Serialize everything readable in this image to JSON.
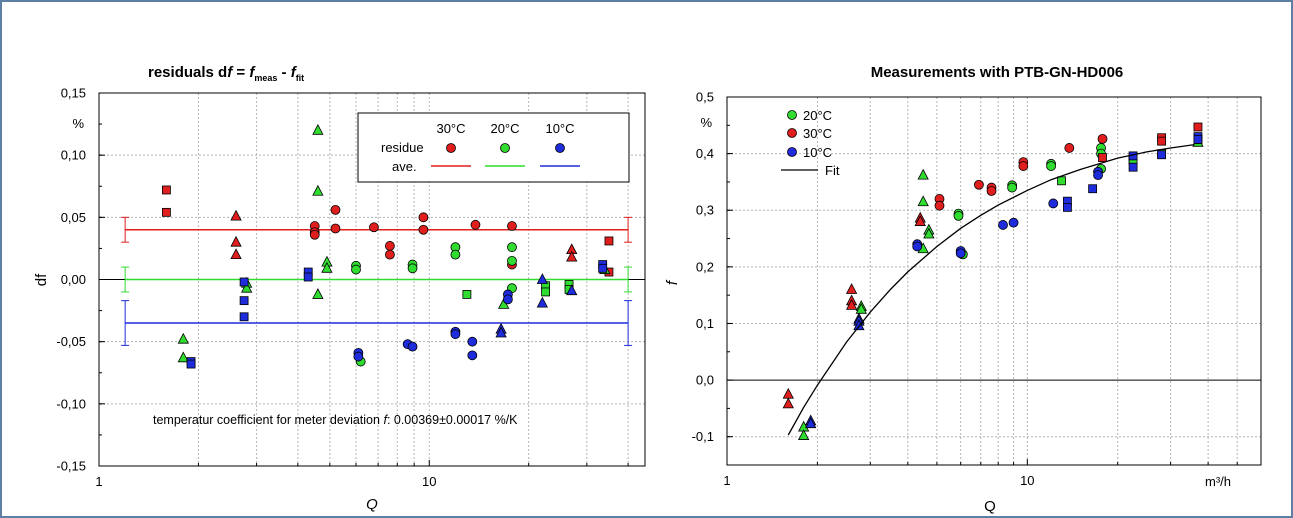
{
  "colors": {
    "30C": "#e01e1e",
    "20C": "#2fdc2f",
    "10C": "#1e2cdc",
    "frame": "#5f7ea3"
  },
  "chart_data": [
    {
      "type": "scatter",
      "title_parts": [
        "residuals d",
        "f",
        " = ",
        "f",
        "meas",
        " - ",
        "f",
        "fit"
      ],
      "xlabel": "Q",
      "ylabel": "df",
      "yunit": "%",
      "xscale": "log",
      "xlim": [
        1,
        45
      ],
      "ylim": [
        -0.15,
        0.15
      ],
      "yticks": [
        "0,15",
        "0,10",
        "0,05",
        "0,00",
        "-0,05",
        "-0,10",
        "-0,15"
      ],
      "ytick_values": [
        0.15,
        0.1,
        0.05,
        0.0,
        -0.05,
        -0.1,
        -0.15
      ],
      "xticks": [
        "1",
        "10"
      ],
      "xtick_values": [
        1,
        10
      ],
      "grid": true,
      "legend": {
        "headers": [
          "30°C",
          "20°C",
          "10°C"
        ],
        "row1": "residue",
        "row2": "ave.",
        "placement": "top-right"
      },
      "annotation": {
        "prefix": "temperatur coefficient for meter deviation ",
        "var": "f",
        "suffix": ": 0.00369±0.00017 %/K"
      },
      "averages": [
        {
          "name": "30°C",
          "value": 0.04,
          "err": 0.01,
          "x_range": [
            1.2,
            40
          ]
        },
        {
          "name": "20°C",
          "value": 0.0,
          "err": 0.01,
          "x_range": [
            1.2,
            40
          ]
        },
        {
          "name": "10°C",
          "value": -0.035,
          "err": 0.018,
          "x_range": [
            1.2,
            40
          ]
        }
      ],
      "series": [
        {
          "name": "30°C",
          "points": [
            {
              "x": 1.6,
              "y": 0.072,
              "m": "s"
            },
            {
              "x": 1.6,
              "y": 0.054,
              "m": "s"
            },
            {
              "x": 2.6,
              "y": 0.051,
              "m": "t"
            },
            {
              "x": 2.6,
              "y": 0.03,
              "m": "t"
            },
            {
              "x": 2.6,
              "y": 0.02,
              "m": "t"
            },
            {
              "x": 4.5,
              "y": 0.043,
              "m": "c"
            },
            {
              "x": 4.5,
              "y": 0.038,
              "m": "c"
            },
            {
              "x": 4.5,
              "y": 0.036,
              "m": "c"
            },
            {
              "x": 5.2,
              "y": 0.056,
              "m": "c"
            },
            {
              "x": 5.2,
              "y": 0.041,
              "m": "c"
            },
            {
              "x": 6.8,
              "y": 0.042,
              "m": "c"
            },
            {
              "x": 7.6,
              "y": 0.027,
              "m": "c"
            },
            {
              "x": 7.6,
              "y": 0.02,
              "m": "c"
            },
            {
              "x": 9.6,
              "y": 0.05,
              "m": "c"
            },
            {
              "x": 9.6,
              "y": 0.04,
              "m": "c"
            },
            {
              "x": 13.8,
              "y": 0.044,
              "m": "c"
            },
            {
              "x": 17.8,
              "y": 0.043,
              "m": "c"
            },
            {
              "x": 17.8,
              "y": 0.012,
              "m": "c"
            },
            {
              "x": 27,
              "y": 0.024,
              "m": "t"
            },
            {
              "x": 27,
              "y": 0.018,
              "m": "t"
            },
            {
              "x": 35,
              "y": 0.031,
              "m": "s"
            },
            {
              "x": 35,
              "y": 0.006,
              "m": "s"
            }
          ]
        },
        {
          "name": "20°C",
          "points": [
            {
              "x": 1.8,
              "y": -0.048,
              "m": "t"
            },
            {
              "x": 1.8,
              "y": -0.063,
              "m": "t"
            },
            {
              "x": 2.8,
              "y": -0.003,
              "m": "t"
            },
            {
              "x": 2.8,
              "y": -0.007,
              "m": "t"
            },
            {
              "x": 4.6,
              "y": 0.12,
              "m": "t"
            },
            {
              "x": 4.6,
              "y": 0.071,
              "m": "t"
            },
            {
              "x": 4.6,
              "y": -0.012,
              "m": "t"
            },
            {
              "x": 4.9,
              "y": 0.014,
              "m": "t"
            },
            {
              "x": 4.9,
              "y": 0.009,
              "m": "t"
            },
            {
              "x": 6.0,
              "y": 0.011,
              "m": "c"
            },
            {
              "x": 6.0,
              "y": 0.008,
              "m": "c"
            },
            {
              "x": 6.2,
              "y": -0.066,
              "m": "c"
            },
            {
              "x": 8.9,
              "y": 0.012,
              "m": "c"
            },
            {
              "x": 8.9,
              "y": 0.009,
              "m": "c"
            },
            {
              "x": 12,
              "y": 0.026,
              "m": "c"
            },
            {
              "x": 12,
              "y": 0.02,
              "m": "c"
            },
            {
              "x": 13,
              "y": -0.012,
              "m": "s"
            },
            {
              "x": 17.8,
              "y": 0.026,
              "m": "c"
            },
            {
              "x": 17.8,
              "y": 0.015,
              "m": "c"
            },
            {
              "x": 17.8,
              "y": -0.007,
              "m": "c"
            },
            {
              "x": 16.8,
              "y": -0.02,
              "m": "t"
            },
            {
              "x": 22.5,
              "y": -0.005,
              "m": "s"
            },
            {
              "x": 22.5,
              "y": -0.01,
              "m": "s"
            },
            {
              "x": 26.5,
              "y": -0.004,
              "m": "s"
            },
            {
              "x": 26.5,
              "y": -0.008,
              "m": "s"
            },
            {
              "x": 34,
              "y": 0.008,
              "m": "t"
            }
          ]
        },
        {
          "name": "10°C",
          "points": [
            {
              "x": 1.9,
              "y": -0.066,
              "m": "s"
            },
            {
              "x": 1.9,
              "y": -0.068,
              "m": "s"
            },
            {
              "x": 2.75,
              "y": -0.002,
              "m": "s"
            },
            {
              "x": 2.75,
              "y": -0.017,
              "m": "s"
            },
            {
              "x": 2.75,
              "y": -0.03,
              "m": "s"
            },
            {
              "x": 4.3,
              "y": 0.006,
              "m": "s"
            },
            {
              "x": 4.3,
              "y": 0.002,
              "m": "s"
            },
            {
              "x": 6.1,
              "y": -0.059,
              "m": "c"
            },
            {
              "x": 6.1,
              "y": -0.062,
              "m": "c"
            },
            {
              "x": 8.6,
              "y": -0.052,
              "m": "c"
            },
            {
              "x": 8.9,
              "y": -0.054,
              "m": "c"
            },
            {
              "x": 12,
              "y": -0.042,
              "m": "c"
            },
            {
              "x": 12,
              "y": -0.044,
              "m": "c"
            },
            {
              "x": 13.5,
              "y": -0.05,
              "m": "c"
            },
            {
              "x": 13.5,
              "y": -0.061,
              "m": "c"
            },
            {
              "x": 16.5,
              "y": -0.04,
              "m": "t"
            },
            {
              "x": 16.5,
              "y": -0.043,
              "m": "t"
            },
            {
              "x": 17.3,
              "y": -0.012,
              "m": "c"
            },
            {
              "x": 17.3,
              "y": -0.016,
              "m": "c"
            },
            {
              "x": 22,
              "y": 0.0,
              "m": "t"
            },
            {
              "x": 22,
              "y": -0.019,
              "m": "t"
            },
            {
              "x": 27,
              "y": -0.009,
              "m": "t"
            },
            {
              "x": 33.5,
              "y": 0.012,
              "m": "s"
            },
            {
              "x": 33.5,
              "y": 0.009,
              "m": "s"
            }
          ]
        }
      ]
    },
    {
      "type": "scatter",
      "title": "Measurements with PTB-GN-HD006",
      "xlabel": "Q",
      "ylabel": "f",
      "yunit": "%",
      "xunit": "m³/h",
      "xscale": "log",
      "xlim": [
        1,
        60
      ],
      "ylim": [
        -0.15,
        0.5
      ],
      "yticks": [
        "0,5",
        "0,4",
        "0,3",
        "0,2",
        "0,1",
        "0,0",
        "-0,1"
      ],
      "ytick_values": [
        0.5,
        0.4,
        0.3,
        0.2,
        0.1,
        0.0,
        -0.1
      ],
      "xticks": [
        "1",
        "10"
      ],
      "xtick_values": [
        1,
        10
      ],
      "grid": true,
      "legend": {
        "entries": [
          "20°C",
          "30°C",
          "10°C",
          "Fit"
        ],
        "placement": "top-left"
      },
      "fit": {
        "x": [
          1.6,
          1.8,
          2.0,
          2.5,
          3,
          3.5,
          4,
          5,
          6,
          7,
          8,
          10,
          12,
          15,
          20,
          25,
          30,
          36
        ],
        "y": [
          -0.097,
          -0.048,
          -0.009,
          0.067,
          0.12,
          0.16,
          0.191,
          0.236,
          0.268,
          0.291,
          0.309,
          0.335,
          0.354,
          0.372,
          0.392,
          0.403,
          0.41,
          0.416
        ]
      },
      "series": [
        {
          "name": "20°C",
          "points": [
            {
              "x": 1.8,
              "y": -0.083,
              "m": "t"
            },
            {
              "x": 1.8,
              "y": -0.098,
              "m": "t"
            },
            {
              "x": 2.8,
              "y": 0.13,
              "m": "t"
            },
            {
              "x": 2.8,
              "y": 0.125,
              "m": "t"
            },
            {
              "x": 4.5,
              "y": 0.362,
              "m": "t"
            },
            {
              "x": 4.5,
              "y": 0.315,
              "m": "t"
            },
            {
              "x": 4.5,
              "y": 0.232,
              "m": "t"
            },
            {
              "x": 4.7,
              "y": 0.265,
              "m": "t"
            },
            {
              "x": 4.7,
              "y": 0.258,
              "m": "t"
            },
            {
              "x": 5.9,
              "y": 0.294,
              "m": "c"
            },
            {
              "x": 5.9,
              "y": 0.29,
              "m": "c"
            },
            {
              "x": 6.1,
              "y": 0.222,
              "m": "c"
            },
            {
              "x": 8.9,
              "y": 0.344,
              "m": "c"
            },
            {
              "x": 8.9,
              "y": 0.34,
              "m": "c"
            },
            {
              "x": 12,
              "y": 0.382,
              "m": "c"
            },
            {
              "x": 12,
              "y": 0.378,
              "m": "c"
            },
            {
              "x": 13,
              "y": 0.352,
              "m": "s"
            },
            {
              "x": 17.6,
              "y": 0.41,
              "m": "c"
            },
            {
              "x": 17.6,
              "y": 0.4,
              "m": "c"
            },
            {
              "x": 17.6,
              "y": 0.373,
              "m": "c"
            },
            {
              "x": 22.5,
              "y": 0.392,
              "m": "s"
            },
            {
              "x": 22.5,
              "y": 0.388,
              "m": "s"
            },
            {
              "x": 28,
              "y": 0.4,
              "m": "s"
            },
            {
              "x": 37,
              "y": 0.42,
              "m": "t"
            }
          ]
        },
        {
          "name": "30°C",
          "points": [
            {
              "x": 1.6,
              "y": -0.025,
              "m": "t"
            },
            {
              "x": 1.6,
              "y": -0.042,
              "m": "t"
            },
            {
              "x": 2.6,
              "y": 0.16,
              "m": "t"
            },
            {
              "x": 2.6,
              "y": 0.14,
              "m": "t"
            },
            {
              "x": 2.6,
              "y": 0.132,
              "m": "t"
            },
            {
              "x": 4.4,
              "y": 0.286,
              "m": "t"
            },
            {
              "x": 4.4,
              "y": 0.28,
              "m": "t"
            },
            {
              "x": 5.1,
              "y": 0.32,
              "m": "c"
            },
            {
              "x": 5.1,
              "y": 0.308,
              "m": "c"
            },
            {
              "x": 6.9,
              "y": 0.345,
              "m": "c"
            },
            {
              "x": 7.6,
              "y": 0.34,
              "m": "c"
            },
            {
              "x": 7.6,
              "y": 0.334,
              "m": "c"
            },
            {
              "x": 9.7,
              "y": 0.385,
              "m": "c"
            },
            {
              "x": 9.7,
              "y": 0.378,
              "m": "c"
            },
            {
              "x": 13.8,
              "y": 0.41,
              "m": "c"
            },
            {
              "x": 17.8,
              "y": 0.426,
              "m": "c"
            },
            {
              "x": 17.8,
              "y": 0.393,
              "m": "s"
            },
            {
              "x": 28,
              "y": 0.428,
              "m": "s"
            },
            {
              "x": 28,
              "y": 0.422,
              "m": "s"
            },
            {
              "x": 37,
              "y": 0.447,
              "m": "s"
            },
            {
              "x": 37,
              "y": 0.425,
              "m": "s"
            }
          ]
        },
        {
          "name": "10°C",
          "points": [
            {
              "x": 1.9,
              "y": -0.072,
              "m": "t"
            },
            {
              "x": 1.9,
              "y": -0.077,
              "m": "t"
            },
            {
              "x": 2.75,
              "y": 0.108,
              "m": "t"
            },
            {
              "x": 2.75,
              "y": 0.104,
              "m": "t"
            },
            {
              "x": 2.75,
              "y": 0.096,
              "m": "t"
            },
            {
              "x": 4.3,
              "y": 0.24,
              "m": "c"
            },
            {
              "x": 4.3,
              "y": 0.236,
              "m": "c"
            },
            {
              "x": 6.0,
              "y": 0.228,
              "m": "c"
            },
            {
              "x": 6.0,
              "y": 0.224,
              "m": "c"
            },
            {
              "x": 8.3,
              "y": 0.274,
              "m": "c"
            },
            {
              "x": 9.0,
              "y": 0.278,
              "m": "c"
            },
            {
              "x": 12.2,
              "y": 0.312,
              "m": "c"
            },
            {
              "x": 13.6,
              "y": 0.316,
              "m": "s"
            },
            {
              "x": 13.6,
              "y": 0.305,
              "m": "s"
            },
            {
              "x": 16.5,
              "y": 0.338,
              "m": "s"
            },
            {
              "x": 17.2,
              "y": 0.368,
              "m": "c"
            },
            {
              "x": 17.2,
              "y": 0.362,
              "m": "c"
            },
            {
              "x": 22.5,
              "y": 0.396,
              "m": "s"
            },
            {
              "x": 22.5,
              "y": 0.376,
              "m": "s"
            },
            {
              "x": 28,
              "y": 0.398,
              "m": "s"
            },
            {
              "x": 37,
              "y": 0.43,
              "m": "s"
            },
            {
              "x": 37,
              "y": 0.425,
              "m": "s"
            }
          ]
        }
      ]
    }
  ]
}
